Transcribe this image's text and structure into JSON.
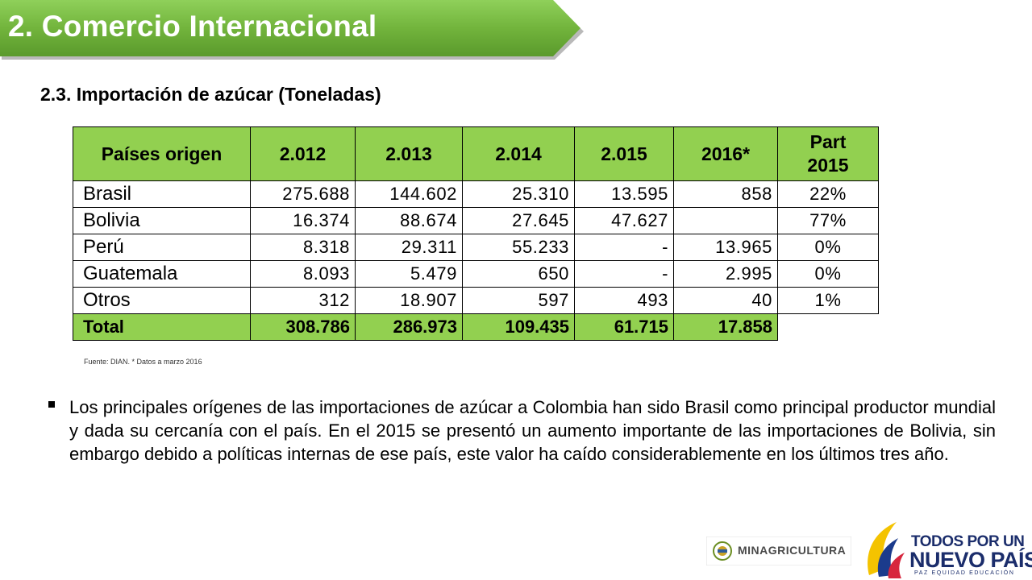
{
  "header": {
    "title": "2. Comercio Internacional",
    "accent": "#70ad47"
  },
  "section": {
    "subtitle": "2.3. Importación de azúcar (Toneladas)"
  },
  "table": {
    "header_fill": "#92d050",
    "columns": [
      "Países origen",
      "2.012",
      "2.013",
      "2.014",
      "2.015",
      "2016*"
    ],
    "part_column": [
      "Part",
      "2015"
    ],
    "rows": [
      {
        "country": "Brasil",
        "values": [
          "275.688",
          "144.602",
          "25.310",
          "13.595",
          "858"
        ],
        "part": "22%"
      },
      {
        "country": "Bolivia",
        "values": [
          "16.374",
          "88.674",
          "27.645",
          "47.627",
          ""
        ],
        "part": "77%"
      },
      {
        "country": "Perú",
        "values": [
          "8.318",
          "29.311",
          "55.233",
          "-",
          "13.965"
        ],
        "part": "0%"
      },
      {
        "country": "Guatemala",
        "values": [
          "8.093",
          "5.479",
          "650",
          "-",
          "2.995"
        ],
        "part": "0%"
      },
      {
        "country": "Otros",
        "values": [
          "312",
          "18.907",
          "597",
          "493",
          "40"
        ],
        "part": "1%"
      }
    ],
    "total": {
      "label": "Total",
      "values": [
        "308.786",
        "286.973",
        "109.435",
        "61.715",
        "17.858"
      ]
    }
  },
  "source": "Fuente: DIAN. * Datos a  marzo  2016",
  "bullet_text": "Los principales orígenes de las importaciones de azúcar a Colombia han sido Brasil como principal productor mundial y dada su cercanía con el país. En el 2015 se presentó un aumento importante de las importaciones de Bolivia, sin embargo debido a políticas internas de ese país, este valor ha caído considerablemente en los últimos tres año.",
  "logos": {
    "minagricultura": "MINAGRICULTURA",
    "todos_line1": "TODOS POR UN",
    "todos_line2": "NUEVO PAÍS",
    "todos_line3": "PAZ  EQUIDAD  EDUCACIÓN"
  }
}
